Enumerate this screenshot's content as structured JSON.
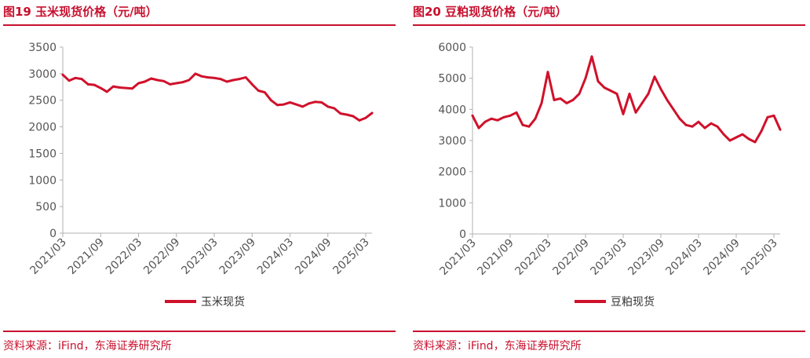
{
  "colors": {
    "accent": "#c8102e",
    "series": "#d0112b",
    "axis": "#b0b0b0",
    "text": "#555555"
  },
  "panels": [
    {
      "title": "图19  玉米现货价格（元/吨）",
      "source": "资料来源：iFind，东海证券研究所",
      "chart_data": {
        "type": "line",
        "title": "图19  玉米现货价格（元/吨）",
        "xlabel": "",
        "ylabel": "",
        "ylim": [
          0,
          3500
        ],
        "yticks": [
          0,
          500,
          1000,
          1500,
          2000,
          2500,
          3000,
          3500
        ],
        "xticks": [
          "2021/03",
          "2021/09",
          "2022/03",
          "2022/09",
          "2023/03",
          "2023/09",
          "2024/03",
          "2024/09",
          "2025/03"
        ],
        "x_range": [
          "2021/03",
          "2025/04"
        ],
        "grid": false,
        "legend": "bottom",
        "series": [
          {
            "name": "玉米现货",
            "x": [
              "2021/03",
              "2021/04",
              "2021/05",
              "2021/06",
              "2021/07",
              "2021/08",
              "2021/09",
              "2021/10",
              "2021/11",
              "2021/12",
              "2022/01",
              "2022/02",
              "2022/03",
              "2022/04",
              "2022/05",
              "2022/06",
              "2022/07",
              "2022/08",
              "2022/09",
              "2022/10",
              "2022/11",
              "2022/12",
              "2023/01",
              "2023/02",
              "2023/03",
              "2023/04",
              "2023/05",
              "2023/06",
              "2023/07",
              "2023/08",
              "2023/09",
              "2023/10",
              "2023/11",
              "2023/12",
              "2024/01",
              "2024/02",
              "2024/03",
              "2024/04",
              "2024/05",
              "2024/06",
              "2024/07",
              "2024/08",
              "2024/09",
              "2024/10",
              "2024/11",
              "2024/12",
              "2025/01",
              "2025/02",
              "2025/03",
              "2025/04"
            ],
            "y": [
              2980,
              2870,
              2920,
              2900,
              2800,
              2790,
              2730,
              2660,
              2760,
              2740,
              2730,
              2720,
              2820,
              2850,
              2910,
              2880,
              2860,
              2800,
              2820,
              2840,
              2880,
              3000,
              2950,
              2930,
              2920,
              2900,
              2850,
              2880,
              2900,
              2930,
              2800,
              2680,
              2650,
              2500,
              2410,
              2420,
              2460,
              2420,
              2380,
              2440,
              2470,
              2460,
              2380,
              2350,
              2250,
              2230,
              2200,
              2120,
              2170,
              2260
            ]
          }
        ]
      }
    },
    {
      "title": "图20  豆粕现货价格（元/吨）",
      "source": "资料来源：iFind，东海证券研究所",
      "chart_data": {
        "type": "line",
        "title": "图20  豆粕现货价格（元/吨）",
        "xlabel": "",
        "ylabel": "",
        "ylim": [
          0,
          6000
        ],
        "yticks": [
          0,
          1000,
          2000,
          3000,
          4000,
          5000,
          6000
        ],
        "xticks": [
          "2021/03",
          "2021/09",
          "2022/03",
          "2022/09",
          "2023/03",
          "2023/09",
          "2024/03",
          "2024/09",
          "2025/03"
        ],
        "x_range": [
          "2021/03",
          "2025/04"
        ],
        "grid": false,
        "legend": "bottom",
        "series": [
          {
            "name": "豆粕现货",
            "x": [
              "2021/03",
              "2021/04",
              "2021/05",
              "2021/06",
              "2021/07",
              "2021/08",
              "2021/09",
              "2021/10",
              "2021/11",
              "2021/12",
              "2022/01",
              "2022/02",
              "2022/03",
              "2022/04",
              "2022/05",
              "2022/06",
              "2022/07",
              "2022/08",
              "2022/09",
              "2022/10",
              "2022/11",
              "2022/12",
              "2023/01",
              "2023/02",
              "2023/03",
              "2023/04",
              "2023/05",
              "2023/06",
              "2023/07",
              "2023/08",
              "2023/09",
              "2023/10",
              "2023/11",
              "2023/12",
              "2024/01",
              "2024/02",
              "2024/03",
              "2024/04",
              "2024/05",
              "2024/06",
              "2024/07",
              "2024/08",
              "2024/09",
              "2024/10",
              "2024/11",
              "2024/12",
              "2025/01",
              "2025/02",
              "2025/03",
              "2025/04"
            ],
            "y": [
              3800,
              3400,
              3600,
              3700,
              3650,
              3750,
              3800,
              3900,
              3500,
              3450,
              3700,
              4200,
              5200,
              4300,
              4350,
              4200,
              4300,
              4500,
              5000,
              5700,
              4900,
              4700,
              4600,
              4500,
              3850,
              4500,
              3900,
              4200,
              4500,
              5050,
              4650,
              4300,
              4000,
              3700,
              3500,
              3450,
              3600,
              3400,
              3550,
              3450,
              3200,
              3000,
              3100,
              3200,
              3050,
              2950,
              3300,
              3750,
              3800,
              3350
            ]
          }
        ]
      }
    }
  ]
}
